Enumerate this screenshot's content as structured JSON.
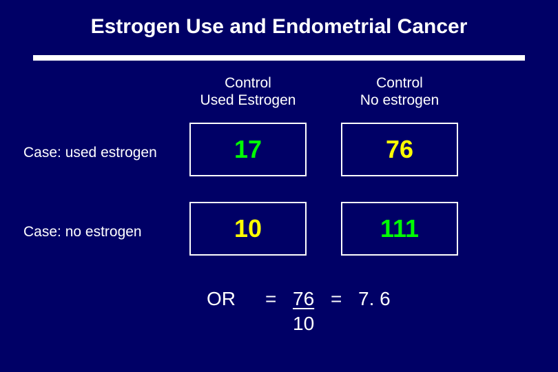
{
  "slide": {
    "title": "Estrogen Use and Endometrial Cancer",
    "background_color": "#000066",
    "rule_color": "#ffffff"
  },
  "table": {
    "type": "table",
    "columns": [
      {
        "line1": "Control",
        "line2": "Used Estrogen"
      },
      {
        "line1": "Control",
        "line2": "No estrogen"
      }
    ],
    "rows": [
      {
        "label": "Case: used estrogen",
        "cells": [
          {
            "value": "17",
            "color": "#00ff00"
          },
          {
            "value": "76",
            "color": "#ffff00"
          }
        ]
      },
      {
        "label": "Case:  no estrogen",
        "cells": [
          {
            "value": "10",
            "color": "#ffff00"
          },
          {
            "value": "111",
            "color": "#00ff00"
          }
        ]
      }
    ],
    "header_fontsize": 21,
    "cell_fontsize": 36,
    "cell_border_color": "#ffffff",
    "label_color": "#ffffff"
  },
  "odds_ratio": {
    "label": "OR",
    "equals1": "=",
    "numerator": "76",
    "equals2": "=",
    "result": "7. 6",
    "denominator": "10",
    "fontsize": 28,
    "color": "#ffffff"
  }
}
